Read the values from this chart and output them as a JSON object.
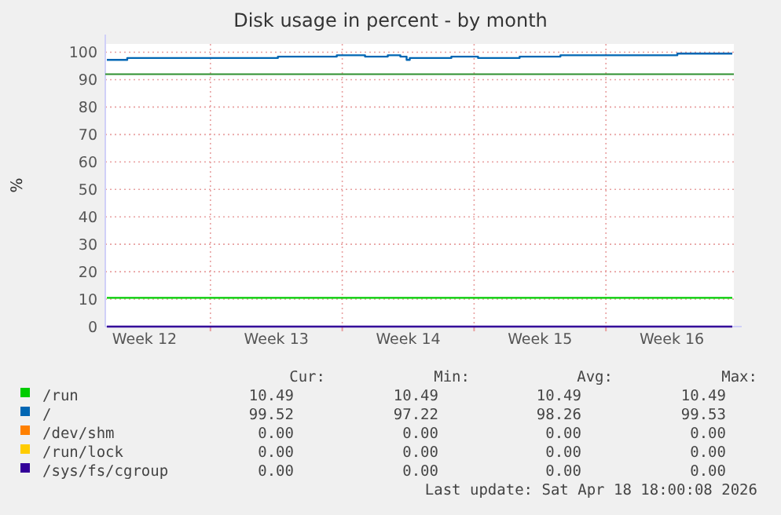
{
  "chart_data": {
    "type": "line",
    "title": "Disk usage in percent - by month",
    "ylabel": "%",
    "xlim": [
      "2026-03-17T10:00",
      "2026-04-19T19:00"
    ],
    "xticks": [
      {
        "value": "2026-03-19T12:00",
        "label": "Week 12"
      },
      {
        "value": "2026-03-23",
        "label": null
      },
      {
        "value": "2026-03-26T12:00",
        "label": "Week 13"
      },
      {
        "value": "2026-03-30",
        "label": null
      },
      {
        "value": "2026-04-02T12:00",
        "label": "Week 14"
      },
      {
        "value": "2026-04-06",
        "label": null
      },
      {
        "value": "2026-04-09T12:00",
        "label": "Week 15"
      },
      {
        "value": "2026-04-13",
        "label": null
      },
      {
        "value": "2026-04-16T12:00",
        "label": "Week 16"
      }
    ],
    "ylim": [
      0,
      103
    ],
    "yticks": [
      0,
      10,
      20,
      30,
      40,
      50,
      60,
      70,
      80,
      90,
      100
    ],
    "grid": true,
    "legend": "bottom",
    "line_style": "solid",
    "series": [
      {
        "name": "/run",
        "color": "#00cc00",
        "x": [
          "2026-03-17T12:00",
          "2026-04-19T17:00"
        ],
        "values": [
          10.49,
          10.49
        ]
      },
      {
        "name": "/",
        "color": "#0066b3",
        "type": "step",
        "x": [
          "2026-03-17T12:00",
          "2026-03-18T14:00",
          "2026-03-26T14:00",
          "2026-03-29T17:00",
          "2026-03-31T05:00",
          "2026-04-01T10:00",
          "2026-04-02T02:00",
          "2026-04-02T10:00",
          "2026-04-02T14:00",
          "2026-04-04T19:00",
          "2026-04-06T05:00",
          "2026-04-08T10:00",
          "2026-04-10T14:00",
          "2026-04-16T19:00",
          "2026-04-19T17:00"
        ],
        "values": [
          97.2,
          97.9,
          98.4,
          98.9,
          98.4,
          98.9,
          98.4,
          97.2,
          97.9,
          98.4,
          97.9,
          98.4,
          98.9,
          99.5,
          99.5
        ]
      },
      {
        "name": "/dev/shm",
        "color": "#ff8000"
      },
      {
        "name": "/run/lock",
        "color": "#ffcc00"
      },
      {
        "name": "/sys/fs/cgroup",
        "color": "#330099",
        "x": [
          "2026-03-17T12:00",
          "2026-04-19T17:00"
        ],
        "values": [
          0,
          0
        ]
      }
    ],
    "ref_lines": [
      {
        "axis": "y",
        "value": 92,
        "color": "#2f8f2f"
      }
    ],
    "annotations": [
      "Cur:",
      "Min:",
      "Avg:",
      "Max:",
      "10.49",
      "10.49",
      "10.49",
      "10.49",
      "99.52",
      "97.22",
      "98.26",
      "99.53",
      "0.00",
      "0.00",
      "0.00",
      "0.00",
      "0.00",
      "0.00",
      "0.00",
      "0.00",
      "0.00",
      "0.00",
      "0.00",
      "0.00",
      "Last update: Sat Apr 18 18:00:08 2026"
    ]
  }
}
